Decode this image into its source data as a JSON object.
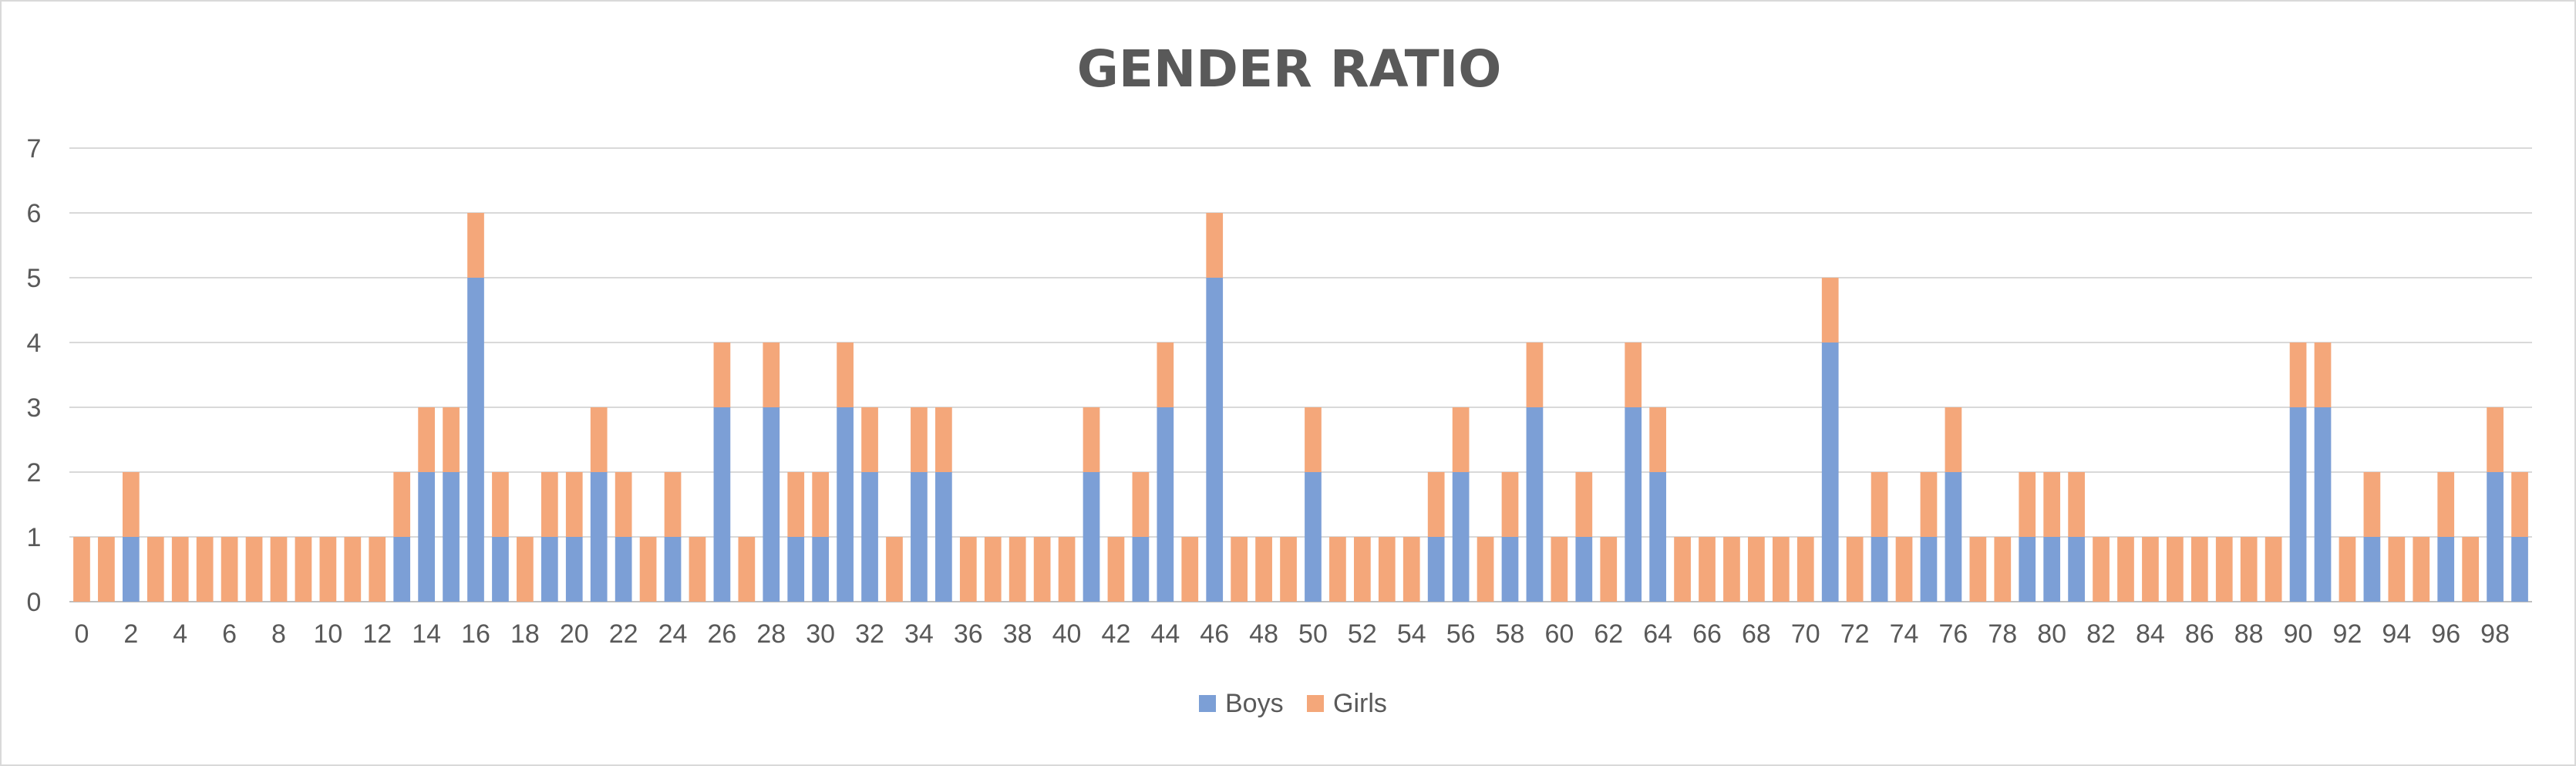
{
  "chart_data": {
    "type": "bar",
    "stacked": true,
    "title": "GENDER RATIO",
    "xlabel": "",
    "ylabel": "",
    "ylim": [
      0,
      7
    ],
    "yticks": [
      0,
      1,
      2,
      3,
      4,
      5,
      6,
      7
    ],
    "x_tick_labels": [
      "0",
      "2",
      "4",
      "6",
      "8",
      "10",
      "12",
      "14",
      "16",
      "18",
      "20",
      "22",
      "24",
      "26",
      "28",
      "30",
      "32",
      "34",
      "36",
      "38",
      "40",
      "42",
      "44",
      "46",
      "48",
      "50",
      "52",
      "54",
      "56",
      "58",
      "60",
      "62",
      "64",
      "66",
      "68",
      "70",
      "72",
      "74",
      "76",
      "78",
      "80",
      "82",
      "84",
      "86",
      "88",
      "90",
      "92",
      "94",
      "96",
      "98"
    ],
    "categories": [
      0,
      1,
      2,
      3,
      4,
      5,
      6,
      7,
      8,
      9,
      10,
      11,
      12,
      13,
      14,
      15,
      16,
      17,
      18,
      19,
      20,
      21,
      22,
      23,
      24,
      25,
      26,
      27,
      28,
      29,
      30,
      31,
      32,
      33,
      34,
      35,
      36,
      37,
      38,
      39,
      40,
      41,
      42,
      43,
      44,
      45,
      46,
      47,
      48,
      49,
      50,
      51,
      52,
      53,
      54,
      55,
      56,
      57,
      58,
      59,
      60,
      61,
      62,
      63,
      64,
      65,
      66,
      67,
      68,
      69,
      70,
      71,
      72,
      73,
      74,
      75,
      76,
      77,
      78,
      79,
      80,
      81,
      82,
      83,
      84,
      85,
      86,
      87,
      88,
      89,
      90,
      91,
      92,
      93,
      94,
      95,
      96,
      97,
      98,
      99
    ],
    "series": [
      {
        "name": "Boys",
        "color": "#7c9fd6",
        "values": [
          0,
          0,
          1,
          0,
          0,
          0,
          0,
          0,
          0,
          0,
          0,
          0,
          0,
          1,
          2,
          2,
          5,
          1,
          0,
          1,
          1,
          2,
          1,
          0,
          1,
          0,
          3,
          0,
          3,
          1,
          1,
          3,
          2,
          0,
          2,
          2,
          0,
          0,
          0,
          0,
          0,
          2,
          0,
          1,
          3,
          0,
          5,
          0,
          0,
          0,
          2,
          0,
          0,
          0,
          0,
          1,
          2,
          0,
          1,
          3,
          0,
          1,
          0,
          3,
          2,
          0,
          0,
          0,
          0,
          0,
          0,
          4,
          0,
          1,
          0,
          1,
          2,
          0,
          0,
          1,
          1,
          1,
          0,
          0,
          0,
          0,
          0,
          0,
          0,
          0,
          3,
          3,
          0,
          1,
          0,
          0,
          1,
          0,
          2,
          1
        ]
      },
      {
        "name": "Girls",
        "color": "#f4a77a",
        "values": [
          1,
          1,
          1,
          1,
          1,
          1,
          1,
          1,
          1,
          1,
          1,
          1,
          1,
          1,
          1,
          1,
          1,
          1,
          1,
          1,
          1,
          1,
          1,
          1,
          1,
          1,
          1,
          1,
          1,
          1,
          1,
          1,
          1,
          1,
          1,
          1,
          1,
          1,
          1,
          1,
          1,
          1,
          1,
          1,
          1,
          1,
          1,
          1,
          1,
          1,
          1,
          1,
          1,
          1,
          1,
          1,
          1,
          1,
          1,
          1,
          1,
          1,
          1,
          1,
          1,
          1,
          1,
          1,
          1,
          1,
          1,
          1,
          1,
          1,
          1,
          1,
          1,
          1,
          1,
          1,
          1,
          1,
          1,
          1,
          1,
          1,
          1,
          1,
          1,
          1,
          1,
          1,
          1,
          1,
          1,
          1,
          1,
          1,
          1,
          1
        ]
      }
    ],
    "grid": true,
    "legend_position": "bottom"
  }
}
